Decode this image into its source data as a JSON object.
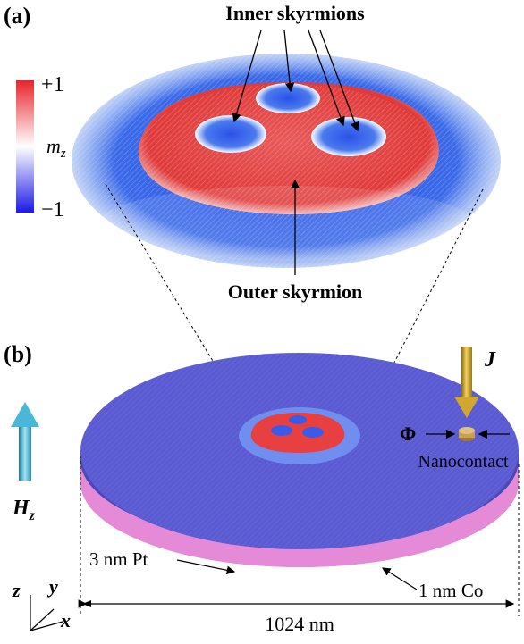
{
  "panel_a": {
    "label": "(a)",
    "colorbar": {
      "top": "+1",
      "bottom": "−1",
      "symbol": "m",
      "subscript": "z",
      "color_top": "#e8242a",
      "color_mid": "#ffffff",
      "color_bottom": "#1a1ae6"
    },
    "annotation_inner": "Inner skyrmions",
    "annotation_outer": "Outer skyrmion"
  },
  "panel_b": {
    "label": "(b)",
    "current_symbol": "J",
    "flux_symbol": "Φ",
    "nanocontact_label": "Nanocontact",
    "field_symbol": "H",
    "field_subscript": "z",
    "pt_label": "3 nm Pt",
    "co_label": "1 nm Co",
    "width_label": "1024 nm",
    "axes": {
      "z": "z",
      "y": "y",
      "x": "x"
    },
    "colors": {
      "co_layer": "#5a5ad2",
      "pt_layer": "#e07ad0",
      "skyrmion_core": "#e84040",
      "arrow_gold": "#c9a020",
      "arrow_cyan": "#3aa7c9"
    }
  }
}
